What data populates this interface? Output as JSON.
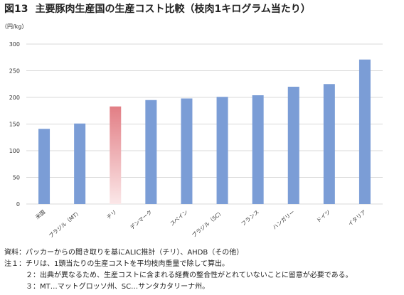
{
  "title_num": "図13",
  "title": "主要豚肉生産国の生産コスト比較（枝肉1キログラム当たり）",
  "chart_data": {
    "type": "bar",
    "unit_label": "（円/kg）",
    "categories": [
      "米国",
      "ブラジル（MT）",
      "チリ",
      "デンマーク",
      "スペイン",
      "ブラジル（SC）",
      "フランス",
      "ハンガリー",
      "ドイツ",
      "イタリア"
    ],
    "values": [
      141,
      151,
      183,
      195,
      198,
      201,
      204,
      220,
      225,
      271
    ],
    "highlight_index": 2,
    "ylim": [
      0,
      300
    ],
    "yticks": [
      0,
      50,
      100,
      150,
      200,
      250,
      300
    ],
    "grid": true,
    "colors": {
      "bar": "#7b9dd6",
      "highlight_top": "#e27e85",
      "highlight_bottom": "#fbe7e8",
      "grid": "#d9d9d9"
    }
  },
  "notes": [
    {
      "label": "資料：",
      "text": "パッカーからの聞き取りを基にALIC推計（チリ）、AHDB（その他）"
    },
    {
      "label": "注１：",
      "text": "チリは、1頭当たりの生産コストを平均枝肉重量で除して算出。"
    },
    {
      "label": "２：",
      "text": "出典が異なるため、生産コストに含まれる経費の整合性がとれていないことに留意が必要である。"
    },
    {
      "label": "３：",
      "text": "MT…マットグロッソ州、SC…サンタカタリーナ州。"
    }
  ]
}
